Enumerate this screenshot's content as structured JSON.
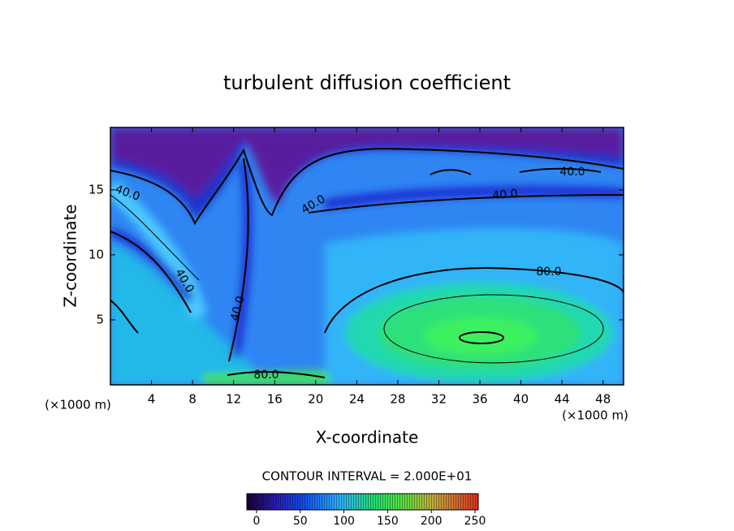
{
  "chart_data": {
    "type": "contour",
    "title": "turbulent diffusion coefficient",
    "x_label": "X-coordinate",
    "y_label": "Z-coordinate",
    "x_unit": "(×1000 m)",
    "xlim": [
      0,
      50
    ],
    "ylim": [
      0,
      19.8
    ],
    "xticks": [
      4,
      8,
      12,
      16,
      20,
      24,
      28,
      32,
      36,
      40,
      44,
      48
    ],
    "yticks": [
      5,
      10,
      15
    ],
    "contour_labels": [
      {
        "value": 40,
        "label": "40.0"
      },
      {
        "value": 40,
        "label": "40.0"
      },
      {
        "value": 40,
        "label": "40.0"
      },
      {
        "value": 40,
        "label": "40.0"
      },
      {
        "value": 40,
        "label": "40.0"
      },
      {
        "value": 40,
        "label": "40.0"
      },
      {
        "value": 80,
        "label": "80.0"
      },
      {
        "value": 80,
        "label": "80.0"
      }
    ],
    "colorbar": {
      "label": "CONTOUR INTERVAL = 2.000E+01",
      "lim": [
        0,
        250
      ],
      "ticks": [
        0,
        50,
        100,
        150,
        200,
        250
      ]
    }
  }
}
